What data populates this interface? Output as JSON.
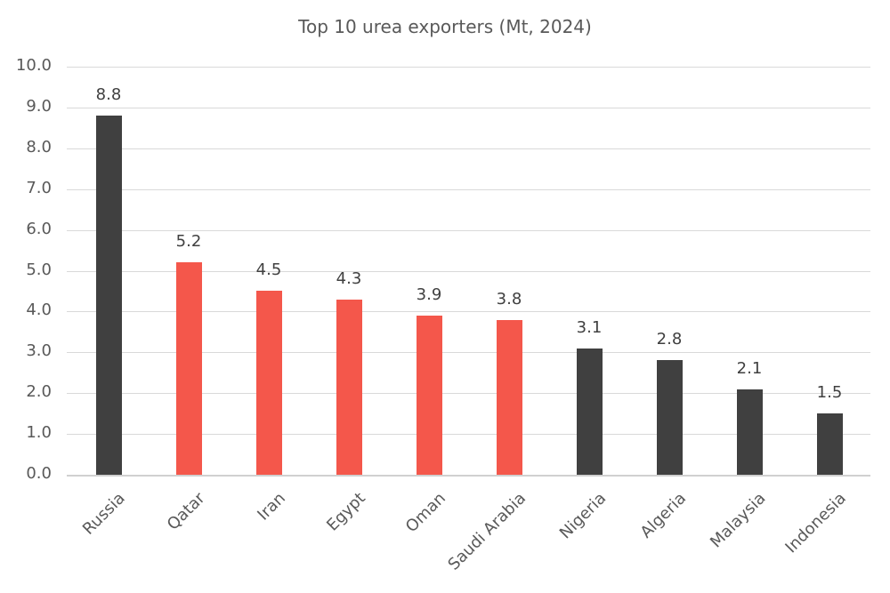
{
  "chart_data": {
    "type": "bar",
    "title": "Top 10 urea exporters (Mt, 2024)",
    "xlabel": "",
    "ylabel": "",
    "ylim": [
      0,
      10
    ],
    "yticks": [
      "0.0",
      "1.0",
      "2.0",
      "3.0",
      "4.0",
      "5.0",
      "6.0",
      "7.0",
      "8.0",
      "9.0",
      "10.0"
    ],
    "grid": true,
    "legend": null,
    "categories": [
      "Russia",
      "Qatar",
      "Iran",
      "Egypt",
      "Oman",
      "Saudi Arabia",
      "Nigeria",
      "Algeria",
      "Malaysia",
      "Indonesia"
    ],
    "values": [
      8.8,
      5.2,
      4.5,
      4.3,
      3.9,
      3.8,
      3.1,
      2.8,
      2.1,
      1.5
    ],
    "value_labels": [
      "8.8",
      "5.2",
      "4.5",
      "4.3",
      "3.9",
      "3.8",
      "3.1",
      "2.8",
      "2.1",
      "1.5"
    ],
    "bar_colors": [
      "#404040",
      "#f4574b",
      "#f4574b",
      "#f4574b",
      "#f4574b",
      "#f4574b",
      "#404040",
      "#404040",
      "#404040",
      "#404040"
    ],
    "colors": {
      "highlight": "#f4574b",
      "default": "#404040",
      "grid": "#d9d9d9",
      "text": "#595959"
    }
  }
}
